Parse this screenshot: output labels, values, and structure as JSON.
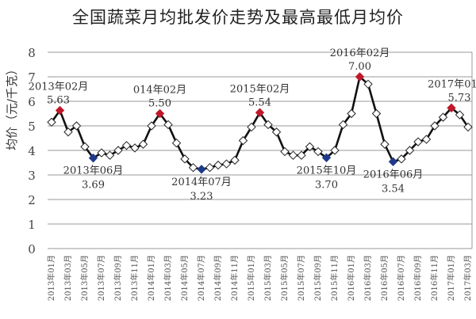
{
  "chart_data": {
    "type": "line",
    "title": "全国蔬菜月均批发价走势及最高最低月均价",
    "xlabel": "",
    "ylabel": "均价（元/千克）",
    "ylim": [
      0,
      8
    ],
    "yticks": [
      0,
      1,
      2,
      3,
      4,
      5,
      6,
      7,
      8
    ],
    "grid": true,
    "x": [
      "2013年01月",
      "2013年02月",
      "2013年03月",
      "2013年04月",
      "2013年05月",
      "2013年06月",
      "2013年07月",
      "2013年08月",
      "2013年09月",
      "2013年10月",
      "2013年11月",
      "2013年12月",
      "2014年01月",
      "2014年02月",
      "2014年03月",
      "2014年04月",
      "2014年05月",
      "2014年06月",
      "2014年07月",
      "2014年08月",
      "2014年09月",
      "2014年10月",
      "2014年11月",
      "2014年12月",
      "2015年01月",
      "2015年02月",
      "2015年03月",
      "2015年04月",
      "2015年05月",
      "2015年06月",
      "2015年07月",
      "2015年08月",
      "2015年09月",
      "2015年10月",
      "2015年11月",
      "2015年12月",
      "2016年01月",
      "2016年02月",
      "2016年03月",
      "2016年04月",
      "2016年05月",
      "2016年06月",
      "2016年07月",
      "2016年08月",
      "2016年09月",
      "2016年10月",
      "2016年11月",
      "2016年12月",
      "2017年01月",
      "2017年02月",
      "2017年03月"
    ],
    "xtick_labels": [
      "2013年01月",
      "2013年03月",
      "2013年05月",
      "2013年07月",
      "2013年09月",
      "2013年11月",
      "2014年01月",
      "2014年03月",
      "2014年05月",
      "2014年07月",
      "2014年09月",
      "2014年11月",
      "2015年01月",
      "2015年03月",
      "2015年05月",
      "2015年07月",
      "2015年09月",
      "2015年11月",
      "2016年01月",
      "2016年03月",
      "2016年05月",
      "2016年07月",
      "2016年09月",
      "2016年11月",
      "2017年01月",
      "2017年03月"
    ],
    "series": [
      {
        "name": "月均批发价",
        "values": [
          5.15,
          5.63,
          4.75,
          5.0,
          4.15,
          3.69,
          3.9,
          3.8,
          4.0,
          4.2,
          4.1,
          4.25,
          5.0,
          5.5,
          5.05,
          4.3,
          3.65,
          3.3,
          3.23,
          3.3,
          3.4,
          3.45,
          3.6,
          4.4,
          4.95,
          5.54,
          5.05,
          4.75,
          3.95,
          3.8,
          3.8,
          4.15,
          3.95,
          3.7,
          4.0,
          5.05,
          5.5,
          7.0,
          6.7,
          5.5,
          4.25,
          3.54,
          3.65,
          4.0,
          4.35,
          4.45,
          5.0,
          5.35,
          5.73,
          5.45,
          4.95
        ]
      }
    ],
    "annotations": [
      {
        "label": "2013年02月",
        "value": "5.63",
        "type": "max",
        "index": 1
      },
      {
        "label": "2013年06月",
        "value": "3.69",
        "type": "min",
        "index": 5
      },
      {
        "label": "014年02月",
        "value": "5.50",
        "type": "max",
        "index": 13
      },
      {
        "label": "2014年07月",
        "value": "3.23",
        "type": "min",
        "index": 18
      },
      {
        "label": "2015年02月",
        "value": "5.54",
        "type": "max",
        "index": 25
      },
      {
        "label": "2015年10月",
        "value": "3.70",
        "type": "min",
        "index": 33
      },
      {
        "label": "2016年02月",
        "value": "7.00",
        "type": "max",
        "index": 37
      },
      {
        "label": "2016年06月",
        "value": "3.54",
        "type": "min",
        "index": 41
      },
      {
        "label": "2017年01月,",
        "value": "5.73",
        "type": "max",
        "index": 48
      }
    ],
    "colors": {
      "line": "#111111",
      "max_marker": "#c0182a",
      "min_marker": "#1f3a8a",
      "marker_fill": "#ffffff",
      "grid": "#999999"
    }
  }
}
